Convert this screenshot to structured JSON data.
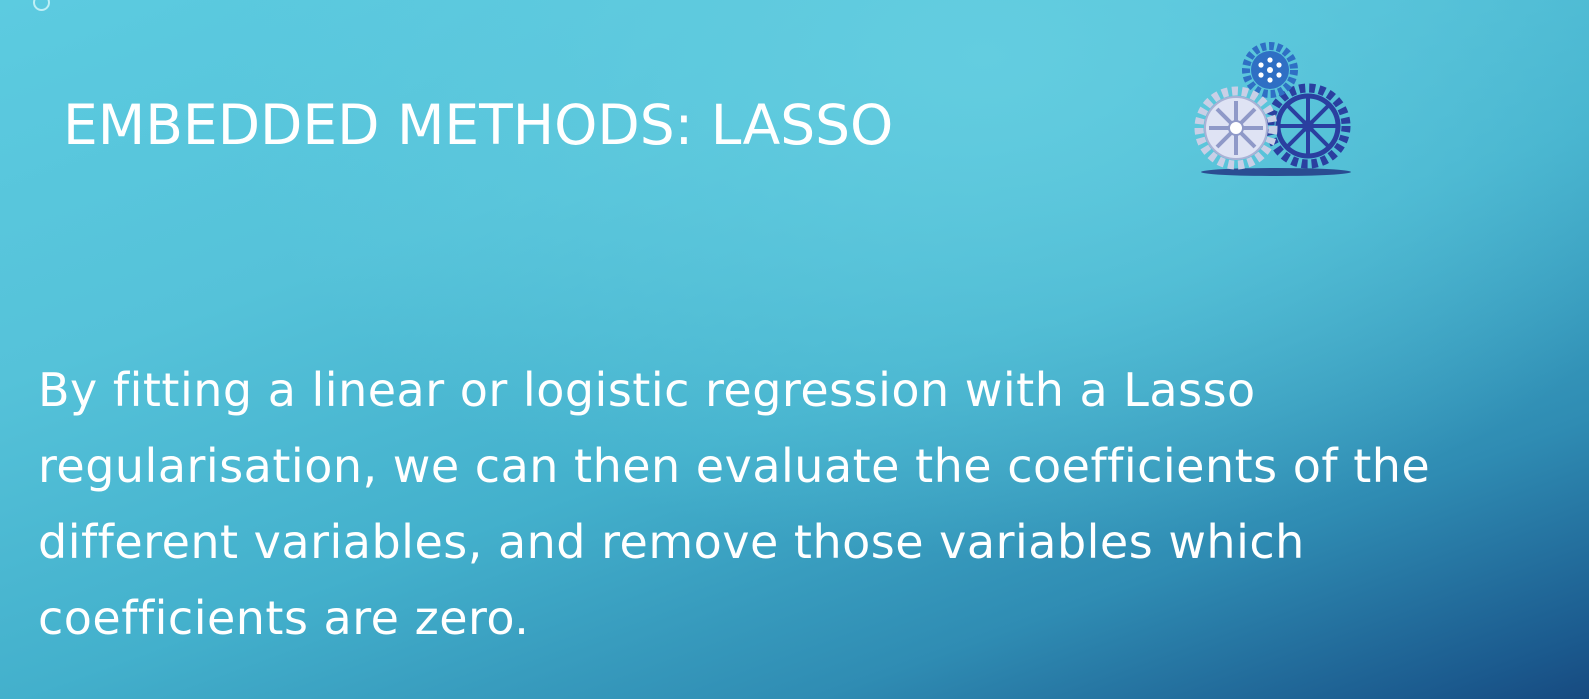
{
  "slide": {
    "title": "EMBEDDED METHODS: LASSO",
    "body": "By fitting a linear or logistic regression with a Lasso regularisation, we can then evaluate the coefficients of the different variables, and remove those variables which coefficients are zero.",
    "gears_icon": "gears-icon",
    "corner_icon": "ring-icon"
  },
  "colors": {
    "background_top": "#5ccbe0",
    "background_bottom": "#174a80",
    "text": "#ffffff",
    "gear_light": "#d6dcf2",
    "gear_dark": "#2a3fa0",
    "gear_small": "#2f6fc4"
  }
}
